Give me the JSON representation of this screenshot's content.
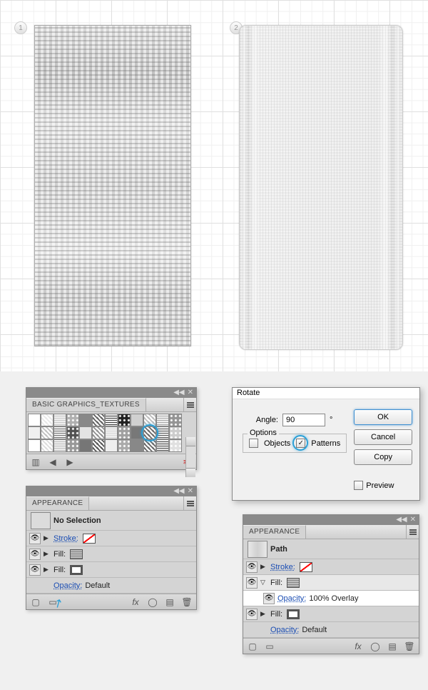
{
  "canvas": {
    "badge1": "1",
    "badge2": "2"
  },
  "swatchesPanel": {
    "title": "BASIC GRAPHICS_TEXTURES",
    "swatch_colors": [
      "#ffffff",
      "#e8e8e8",
      "#c8c8c8",
      "#b0b0b0",
      "#888888",
      "#606060",
      "#404040",
      "#202020",
      "#d0d0d0",
      "#bcbcbc",
      "#a8a8a8",
      "#949494",
      "#f0f0f0",
      "#c0c0c0",
      "#707070",
      "#505050",
      "#e4e4e4",
      "#909090",
      "#d8d8d8",
      "#a0a0a0",
      "#787878",
      "#686868",
      "#585858",
      "#cccccc",
      "#ffffff",
      "#dcdcdc",
      "#bababa",
      "#989898",
      "#767676",
      "#545454",
      "#eeeeee",
      "#aaaaaa",
      "#888888",
      "#666666",
      "#444444",
      "#e0e0e0"
    ],
    "highlight_index": 21
  },
  "appearance1": {
    "title": "APPEARANCE",
    "selection": "No Selection",
    "rows": {
      "stroke": "Stroke:",
      "fill1": "Fill:",
      "fill2": "Fill:",
      "opacity_label": "Opacity:",
      "opacity_value": "Default"
    }
  },
  "rotate": {
    "title": "Rotate",
    "angle_label": "Angle:",
    "angle_value": "90",
    "degree": "°",
    "options_label": "Options",
    "objects_label": "Objects",
    "patterns_label": "Patterns",
    "objects_checked": false,
    "patterns_checked": true,
    "ok": "OK",
    "cancel": "Cancel",
    "copy": "Copy",
    "preview": "Preview"
  },
  "appearance2": {
    "title": "APPEARANCE",
    "selection": "Path",
    "rows": {
      "stroke": "Stroke:",
      "fill1": "Fill:",
      "opacity_inner_label": "Opacity:",
      "opacity_inner_value": "100% Overlay",
      "fill2": "Fill:",
      "opacity_label": "Opacity:",
      "opacity_value": "Default"
    }
  },
  "footer_icons": {
    "fx": "fx",
    "circle": "◯",
    "stop": "▢",
    "new": "▤",
    "trash": "🗑"
  }
}
